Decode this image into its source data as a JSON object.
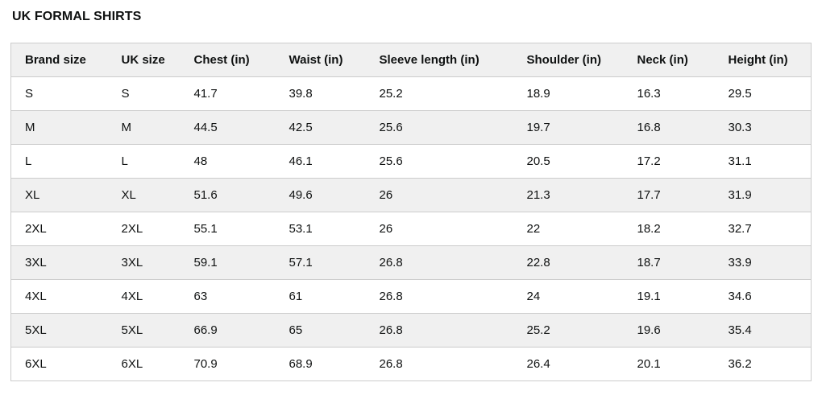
{
  "page_title": "UK FORMAL SHIRTS",
  "table": {
    "columns": [
      "Brand size",
      "UK size",
      "Chest (in)",
      "Waist (in)",
      "Sleeve length (in)",
      "Shoulder (in)",
      "Neck (in)",
      "Height (in)"
    ],
    "rows": [
      [
        "S",
        "S",
        "41.7",
        "39.8",
        "25.2",
        "18.9",
        "16.3",
        "29.5"
      ],
      [
        "M",
        "M",
        "44.5",
        "42.5",
        "25.6",
        "19.7",
        "16.8",
        "30.3"
      ],
      [
        "L",
        "L",
        "48",
        "46.1",
        "25.6",
        "20.5",
        "17.2",
        "31.1"
      ],
      [
        "XL",
        "XL",
        "51.6",
        "49.6",
        "26",
        "21.3",
        "17.7",
        "31.9"
      ],
      [
        "2XL",
        "2XL",
        "55.1",
        "53.1",
        "26",
        "22",
        "18.2",
        "32.7"
      ],
      [
        "3XL",
        "3XL",
        "59.1",
        "57.1",
        "26.8",
        "22.8",
        "18.7",
        "33.9"
      ],
      [
        "4XL",
        "4XL",
        "63",
        "61",
        "26.8",
        "24",
        "19.1",
        "34.6"
      ],
      [
        "5XL",
        "5XL",
        "66.9",
        "65",
        "26.8",
        "25.2",
        "19.6",
        "35.4"
      ],
      [
        "6XL",
        "6XL",
        "70.9",
        "68.9",
        "26.8",
        "26.4",
        "20.1",
        "36.2"
      ]
    ]
  },
  "colors": {
    "text": "#0f1111",
    "header_bg": "#f0f0f0",
    "stripe": "#f0f0f0",
    "border": "#cccccc"
  }
}
